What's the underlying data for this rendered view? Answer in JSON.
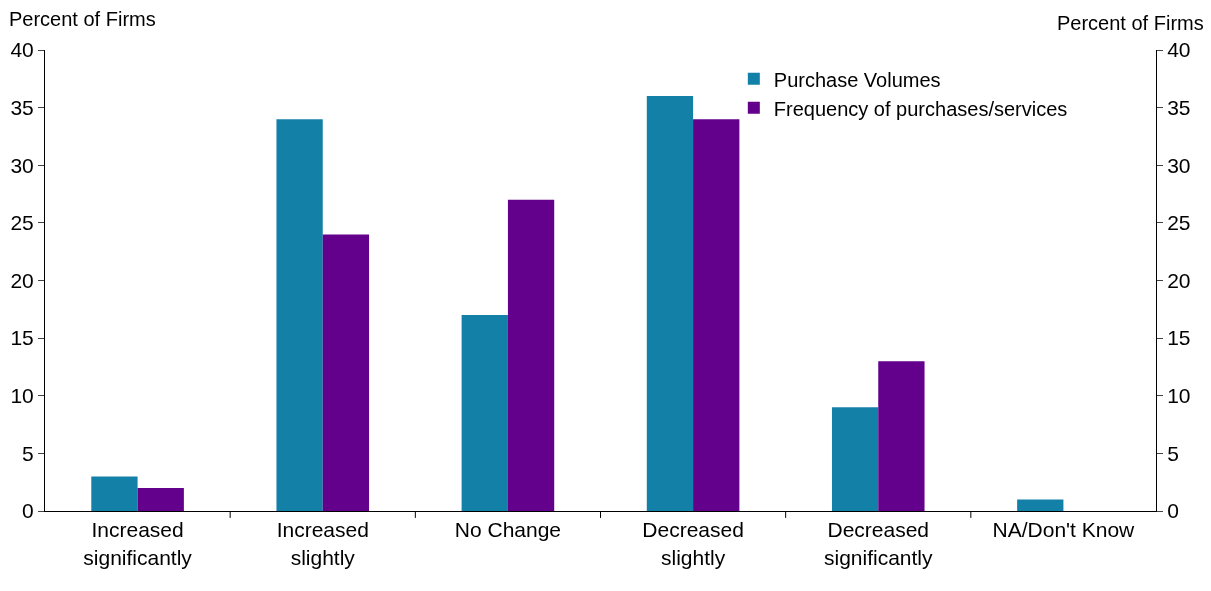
{
  "chart_data": {
    "type": "bar",
    "ylabel": "Percent of Firms",
    "y2label": "Percent of Firms",
    "categories": [
      "Increased significantly",
      "Increased slightly",
      "No Change",
      "Decreased slightly",
      "Decreased significantly",
      "NA/Don't Know"
    ],
    "series": [
      {
        "name": "Purchase Volumes",
        "color": "#1380a8",
        "values": [
          3,
          34,
          17,
          36,
          9,
          1
        ]
      },
      {
        "name": "Frequency of purchases/services",
        "color": "#63008c",
        "values": [
          2,
          24,
          27,
          34,
          13,
          0
        ]
      }
    ],
    "ylim": [
      0,
      40
    ],
    "yticks": [
      0,
      5,
      10,
      15,
      20,
      25,
      30,
      35,
      40
    ],
    "y2lim": [
      0,
      40
    ],
    "y2ticks": [
      0,
      5,
      10,
      15,
      20,
      25,
      30,
      35,
      40
    ],
    "grid": false,
    "legend": "top right"
  }
}
